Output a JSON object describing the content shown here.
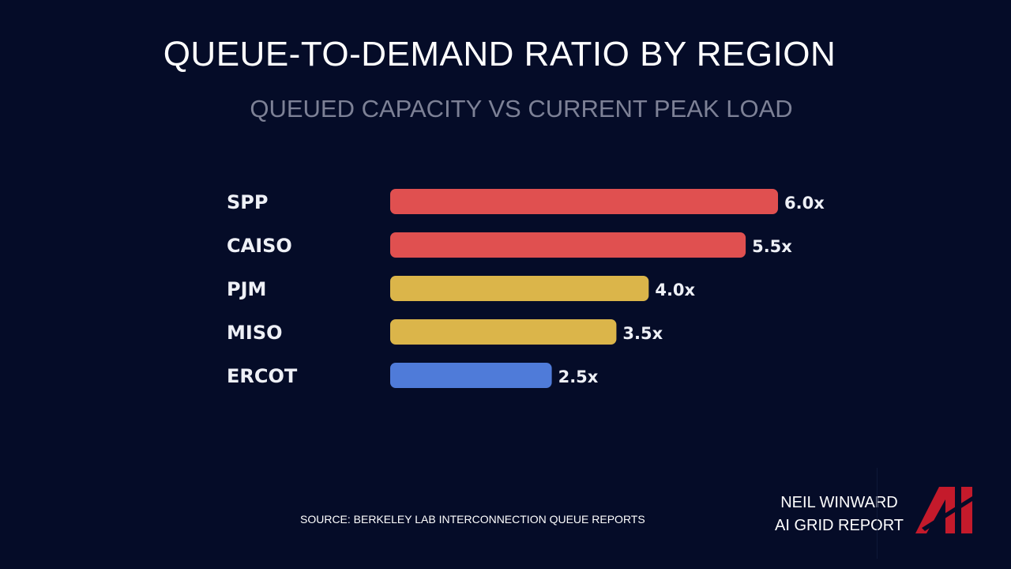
{
  "title": "QUEUE-TO-DEMAND RATIO BY REGION",
  "subtitle": "QUEUED CAPACITY VS CURRENT PEAK LOAD",
  "source": "SOURCE: BERKELEY LAB INTERCONNECTION QUEUE REPORTS",
  "brand": {
    "line1": "NEIL WINWARD",
    "line2": "AI GRID REPORT",
    "logo_text": "AI"
  },
  "colors": {
    "background": "#050c28",
    "red": "#e05050",
    "yellow": "#dbb54a",
    "blue": "#4f7bd9",
    "logo": "#c41a2b"
  },
  "chart_data": {
    "type": "bar",
    "orientation": "horizontal",
    "title": "QUEUE-TO-DEMAND RATIO BY REGION",
    "subtitle": "QUEUED CAPACITY VS CURRENT PEAK LOAD",
    "categories": [
      "SPP",
      "CAISO",
      "PJM",
      "MISO",
      "ERCOT"
    ],
    "values": [
      6.0,
      5.5,
      4.0,
      3.5,
      2.5
    ],
    "labels": [
      "6.0x",
      "5.5x",
      "4.0x",
      "3.5x",
      "2.5x"
    ],
    "bar_colors": [
      "#e05050",
      "#e05050",
      "#dbb54a",
      "#dbb54a",
      "#4f7bd9"
    ],
    "xlim": [
      0,
      6.0
    ],
    "grid": false,
    "xlabel": "",
    "ylabel": ""
  }
}
